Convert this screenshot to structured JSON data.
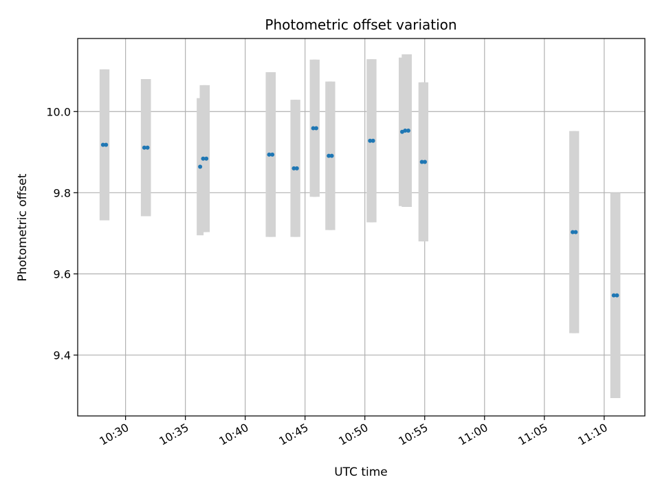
{
  "chart_data": {
    "type": "scatter",
    "title": "Photometric offset variation",
    "xlabel": "UTC time",
    "ylabel": "Photometric offset",
    "x_format": "HH:MM",
    "xlim": [
      "10:26:00",
      "11:13:24"
    ],
    "ylim": [
      9.25,
      10.18
    ],
    "x_ticks": [
      "10:30",
      "10:35",
      "10:40",
      "10:45",
      "10:50",
      "10:55",
      "11:00",
      "11:05",
      "11:10"
    ],
    "y_ticks": [
      9.4,
      9.6,
      9.8,
      10.0
    ],
    "y_tick_labels": [
      "9.4",
      "9.6",
      "9.8",
      "10.0"
    ],
    "grid": true,
    "colors": {
      "point": "#1f77b4",
      "error_bar": "#d3d3d3",
      "grid": "#b0b0b0"
    },
    "series": [
      {
        "points": [
          {
            "x": "10:28:07",
            "y": 9.918,
            "yerr": 0.186
          },
          {
            "x": "10:28:22",
            "y": 9.918,
            "yerr": 0.186
          },
          {
            "x": "10:31:34",
            "y": 9.911,
            "yerr": 0.169
          },
          {
            "x": "10:31:50",
            "y": 9.911,
            "yerr": 0.169
          },
          {
            "x": "10:36:14",
            "y": 9.864,
            "yerr": 0.169
          },
          {
            "x": "10:36:29",
            "y": 9.884,
            "yerr": 0.181
          },
          {
            "x": "10:36:45",
            "y": 9.884,
            "yerr": 0.181
          },
          {
            "x": "10:42:00",
            "y": 9.894,
            "yerr": 0.203
          },
          {
            "x": "10:42:16",
            "y": 9.894,
            "yerr": 0.203
          },
          {
            "x": "10:44:04",
            "y": 9.86,
            "yerr": 0.169
          },
          {
            "x": "10:44:19",
            "y": 9.86,
            "yerr": 0.169
          },
          {
            "x": "10:45:41",
            "y": 9.959,
            "yerr": 0.169
          },
          {
            "x": "10:45:56",
            "y": 9.959,
            "yerr": 0.169
          },
          {
            "x": "10:46:59",
            "y": 9.891,
            "yerr": 0.183
          },
          {
            "x": "10:47:14",
            "y": 9.891,
            "yerr": 0.183
          },
          {
            "x": "10:50:26",
            "y": 9.928,
            "yerr": 0.201
          },
          {
            "x": "10:50:41",
            "y": 9.928,
            "yerr": 0.201
          },
          {
            "x": "10:53:07",
            "y": 9.95,
            "yerr": 0.183
          },
          {
            "x": "10:53:22",
            "y": 9.953,
            "yerr": 0.188
          },
          {
            "x": "10:53:38",
            "y": 9.953,
            "yerr": 0.188
          },
          {
            "x": "10:54:46",
            "y": 9.876,
            "yerr": 0.196
          },
          {
            "x": "10:55:01",
            "y": 9.876,
            "yerr": 0.196
          },
          {
            "x": "11:07:22",
            "y": 9.703,
            "yerr": 0.249
          },
          {
            "x": "11:07:37",
            "y": 9.703,
            "yerr": 0.249
          },
          {
            "x": "11:10:48",
            "y": 9.547,
            "yerr": 0.253
          },
          {
            "x": "11:11:04",
            "y": 9.547,
            "yerr": 0.253
          }
        ]
      }
    ]
  }
}
